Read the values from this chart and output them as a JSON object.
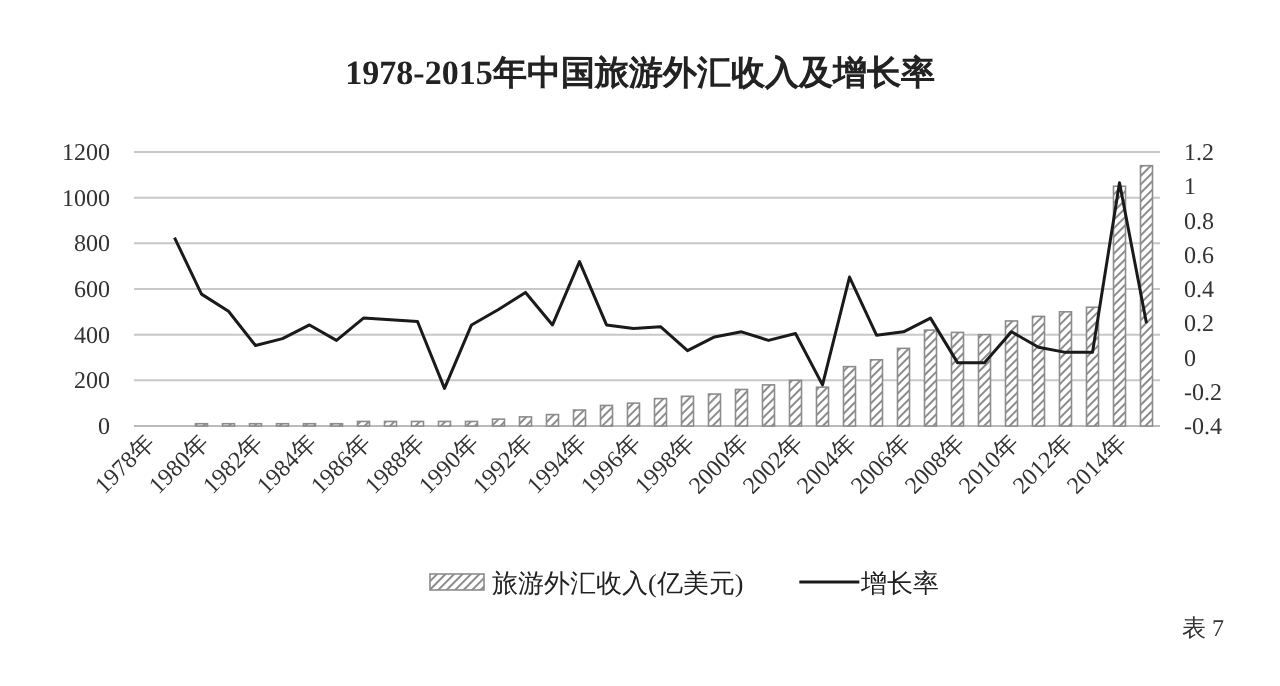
{
  "chart_data": {
    "type": "bar",
    "title": "1978-2015年中国旅游外汇收入及增长率",
    "categories": [
      "1978年",
      null,
      "1980年",
      null,
      "1982年",
      null,
      "1984年",
      null,
      "1986年",
      null,
      "1988年",
      null,
      "1990年",
      null,
      "1992年",
      null,
      "1994年",
      null,
      "1996年",
      null,
      "1998年",
      null,
      "2000年",
      null,
      "2002年",
      null,
      "2004年",
      null,
      "2006年",
      null,
      "2008年",
      null,
      "2010年",
      null,
      "2012年",
      null,
      "2014年",
      null
    ],
    "series": [
      {
        "name": "旅游外汇收入(亿美元)",
        "color": "#8c8c8c",
        "values": [
          0,
          0,
          10,
          10,
          10,
          10,
          10,
          10,
          20,
          20,
          20,
          20,
          20,
          30,
          40,
          50,
          70,
          90,
          100,
          120,
          130,
          140,
          160,
          180,
          200,
          170,
          260,
          290,
          340,
          420,
          410,
          400,
          460,
          480,
          500,
          520,
          1050,
          1140
        ]
      },
      {
        "name": "增长率",
        "type": "line",
        "axis": "y2",
        "color": "#1a1a1a",
        "values": [
          null,
          0.7,
          0.37,
          0.27,
          0.07,
          0.11,
          0.19,
          0.1,
          0.23,
          0.22,
          0.21,
          -0.18,
          0.19,
          0.28,
          0.38,
          0.19,
          0.56,
          0.19,
          0.17,
          0.18,
          0.04,
          0.12,
          0.15,
          0.1,
          0.14,
          -0.16,
          0.47,
          0.13,
          0.15,
          0.23,
          -0.03,
          -0.03,
          0.15,
          0.06,
          0.03,
          0.03,
          1.02,
          0.2
        ]
      }
    ],
    "ylim": [
      0,
      1200
    ],
    "yticks": [
      0,
      200,
      400,
      600,
      800,
      1000,
      1200
    ],
    "y2lim": [
      -0.4,
      1.2
    ],
    "y2ticks": [
      -0.4,
      -0.2,
      0,
      0.2,
      0.4,
      0.6,
      0.8,
      1,
      1.2
    ],
    "grid": "y",
    "legend": "bottom",
    "annotations": [
      "表 7"
    ]
  }
}
